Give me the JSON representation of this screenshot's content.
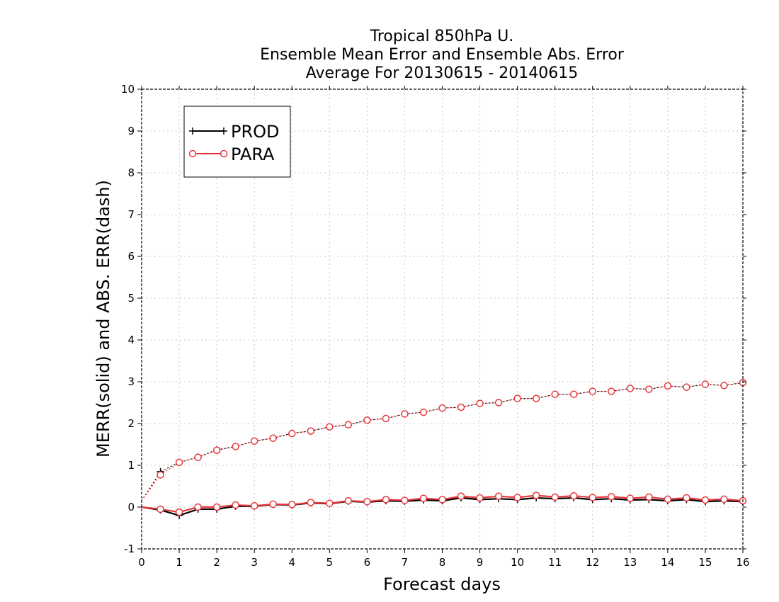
{
  "chart_data": {
    "type": "line",
    "title": [
      "Tropical 850hPa U.",
      "Ensemble Mean Error and Ensemble Abs. Error",
      "Average For 20130615 - 20140615"
    ],
    "xlabel": "Forecast days",
    "ylabel": "MERR(solid) and ABS. ERR(dash)",
    "xlim": [
      0,
      16
    ],
    "ylim": [
      -1,
      10
    ],
    "xticks": [
      0,
      1,
      2,
      3,
      4,
      5,
      6,
      7,
      8,
      9,
      10,
      11,
      12,
      13,
      14,
      15,
      16
    ],
    "yticks": [
      -1,
      0,
      1,
      2,
      3,
      4,
      5,
      6,
      7,
      8,
      9,
      10
    ],
    "grid": true,
    "legend_position": "top-left",
    "x": [
      0,
      0.5,
      1,
      1.5,
      2,
      2.5,
      3,
      3.5,
      4,
      4.5,
      5,
      5.5,
      6,
      6.5,
      7,
      7.5,
      8,
      8.5,
      9,
      9.5,
      10,
      10.5,
      11,
      11.5,
      12,
      12.5,
      13,
      13.5,
      14,
      14.5,
      15,
      15.5,
      16
    ],
    "series": [
      {
        "name": "PROD",
        "color": "#000000",
        "marker": "plus",
        "merr": [
          0,
          -0.07,
          -0.2,
          -0.05,
          -0.05,
          0.02,
          0.02,
          0.06,
          0.05,
          0.1,
          0.08,
          0.14,
          0.12,
          0.15,
          0.14,
          0.17,
          0.15,
          0.22,
          0.18,
          0.2,
          0.18,
          0.22,
          0.2,
          0.22,
          0.18,
          0.2,
          0.17,
          0.18,
          0.15,
          0.18,
          0.13,
          0.15,
          0.13
        ],
        "abs_err": [
          0.15,
          0.85,
          1.07,
          1.2,
          1.37,
          1.45,
          1.58,
          1.65,
          1.77,
          1.82,
          1.92,
          1.97,
          2.08,
          2.12,
          2.23,
          2.27,
          2.37,
          2.39,
          2.48,
          2.5,
          2.6,
          2.6,
          2.7,
          2.7,
          2.77,
          2.77,
          2.84,
          2.82,
          2.9,
          2.87,
          2.94,
          2.91,
          2.98
        ]
      },
      {
        "name": "PARA",
        "color": "#e8383d",
        "marker": "circle",
        "merr": [
          0,
          -0.05,
          -0.12,
          0,
          0,
          0.05,
          0.03,
          0.07,
          0.06,
          0.11,
          0.09,
          0.15,
          0.13,
          0.18,
          0.16,
          0.21,
          0.18,
          0.26,
          0.22,
          0.26,
          0.23,
          0.28,
          0.24,
          0.27,
          0.23,
          0.25,
          0.21,
          0.24,
          0.19,
          0.22,
          0.17,
          0.19,
          0.15
        ],
        "abs_err": [
          0.15,
          0.77,
          1.07,
          1.19,
          1.36,
          1.45,
          1.58,
          1.65,
          1.76,
          1.82,
          1.92,
          1.97,
          2.08,
          2.12,
          2.23,
          2.27,
          2.37,
          2.39,
          2.48,
          2.5,
          2.6,
          2.6,
          2.7,
          2.7,
          2.77,
          2.77,
          2.84,
          2.82,
          2.9,
          2.87,
          2.94,
          2.91,
          2.98
        ]
      }
    ]
  }
}
